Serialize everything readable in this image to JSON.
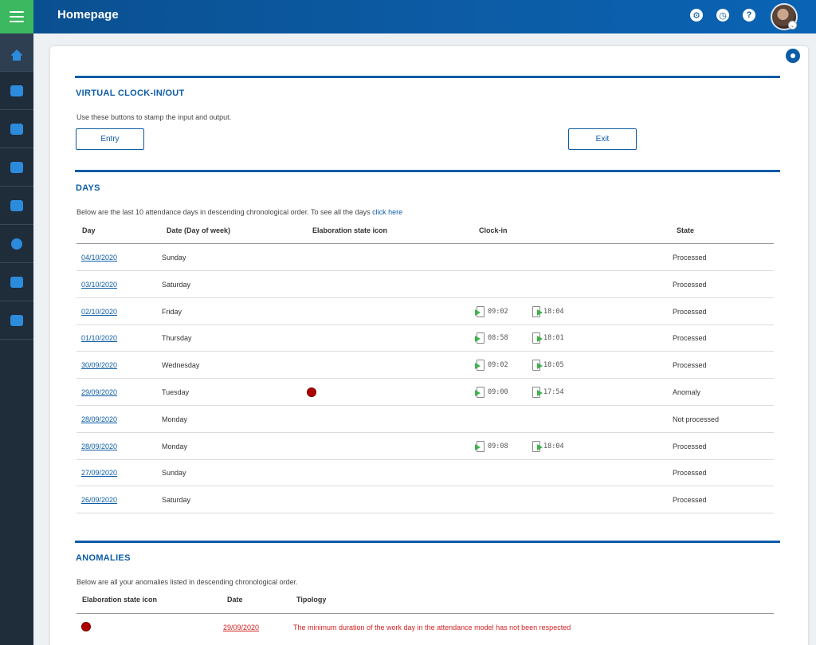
{
  "header": {
    "title": "Homepage"
  },
  "icons": {
    "settings": "gear-icon",
    "clock": "clock-icon",
    "help": "question-icon"
  },
  "sidebar": {
    "items": [
      "home-icon",
      "users-icon",
      "group-icon",
      "user-settings-icon",
      "monitor-icon",
      "gauge-icon",
      "chat-icon",
      "report-icon"
    ]
  },
  "clock_section": {
    "title": "VIRTUAL CLOCK-IN/OUT",
    "description": "Use these buttons to stamp the input and output.",
    "entry_label": "Entry",
    "exit_label": "Exit"
  },
  "days_section": {
    "title": "DAYS",
    "description": "Below are the last 10 attendance days in descending chronological order. To see all the days ",
    "link_label": "click here",
    "columns": {
      "day": "Day",
      "date": "Date (Day of week)",
      "icon": "Elaboration state icon",
      "clock": "Clock-in",
      "state": "State"
    },
    "rows": [
      {
        "day": "04/10/2020",
        "weekday": "Sunday",
        "anomaly": false,
        "in": "",
        "out": "",
        "state": "Processed"
      },
      {
        "day": "03/10/2020",
        "weekday": "Saturday",
        "anomaly": false,
        "in": "",
        "out": "",
        "state": "Processed"
      },
      {
        "day": "02/10/2020",
        "weekday": "Friday",
        "anomaly": false,
        "in": "09:02",
        "out": "18:04",
        "state": "Processed"
      },
      {
        "day": "01/10/2020",
        "weekday": "Thursday",
        "anomaly": false,
        "in": "08:58",
        "out": "18:01",
        "state": "Processed"
      },
      {
        "day": "30/09/2020",
        "weekday": "Wednesday",
        "anomaly": false,
        "in": "09:02",
        "out": "18:05",
        "state": "Processed"
      },
      {
        "day": "29/09/2020",
        "weekday": "Tuesday",
        "anomaly": true,
        "in": "09:00",
        "out": "17:54",
        "state": "Anomaly"
      },
      {
        "day": "28/09/2020",
        "weekday": "Monday",
        "anomaly": false,
        "in": "",
        "out": "",
        "state": "Not processed"
      },
      {
        "day": "28/09/2020",
        "weekday": "Monday",
        "anomaly": false,
        "in": "09:08",
        "out": "18:04",
        "state": "Processed"
      },
      {
        "day": "27/09/2020",
        "weekday": "Sunday",
        "anomaly": false,
        "in": "",
        "out": "",
        "state": "Processed"
      },
      {
        "day": "26/09/2020",
        "weekday": "Saturday",
        "anomaly": false,
        "in": "",
        "out": "",
        "state": "Processed"
      }
    ]
  },
  "anomalies_section": {
    "title": "ANOMALIES",
    "description": "Below are all your anomalies listed in descending chronological order.",
    "columns": {
      "icon": "Elaboration state icon",
      "date": "Date",
      "typology": "Tipology"
    },
    "rows": [
      {
        "date": "29/09/2020",
        "typology": "The minimum duration of the work day in the attendance model has not been respected"
      }
    ]
  },
  "colors": {
    "accent": "#0c5ca6",
    "menu_green": "#3cb960",
    "anomaly_red": "#b00000",
    "anomaly_text": "#d42020"
  }
}
